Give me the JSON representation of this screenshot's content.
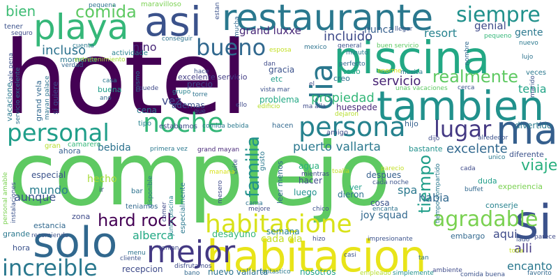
{
  "words": [
    {
      "text": "hotel",
      "color": "#440154"
    },
    {
      "text": "complejo",
      "color": "#5ec962"
    },
    {
      "text": "habitacion",
      "color": "#e8e419"
    },
    {
      "text": "restaurante",
      "color": "#2a788e"
    },
    {
      "text": "piscina",
      "color": "#22a884"
    },
    {
      "text": "tambien",
      "color": "#21918c"
    },
    {
      "text": "asi",
      "color": "#3b528b"
    },
    {
      "text": "solo",
      "color": "#31688e"
    },
    {
      "text": "playa",
      "color": "#35b779"
    },
    {
      "text": "mejor",
      "color": "#443983"
    },
    {
      "text": "persona",
      "color": "#26828e"
    },
    {
      "text": "personal",
      "color": "#1f9e89"
    },
    {
      "text": "noche",
      "color": "#35b779"
    },
    {
      "text": "habitacione",
      "color": "#d8e219"
    },
    {
      "text": "increible",
      "color": "#2a788e"
    },
    {
      "text": "hard rock",
      "color": "#440154"
    },
    {
      "text": "si",
      "color": "#3b528b"
    },
    {
      "text": "ma",
      "color": "#355f8d"
    },
    {
      "text": "siempre",
      "color": "#21918c"
    },
    {
      "text": "bueno",
      "color": "#31688e"
    },
    {
      "text": "lugar",
      "color": "#443983"
    },
    {
      "text": "dia",
      "color": "#2a788e"
    },
    {
      "text": "agradable",
      "color": "#7ad151"
    },
    {
      "text": "realmente",
      "color": "#5ec962"
    },
    {
      "text": "familia",
      "color": "#21918c"
    },
    {
      "text": "viaje",
      "color": "#2ab07f"
    },
    {
      "text": "tiempo",
      "color": "#1f9e89"
    },
    {
      "text": "comida",
      "color": "#5ec962"
    },
    {
      "text": "bien",
      "color": "#3dbc74"
    },
    {
      "text": "puerto vallarta",
      "color": "#2a788e"
    },
    {
      "text": "excelente",
      "color": "#31688e"
    },
    {
      "text": "propiedad",
      "color": "#35b779"
    },
    {
      "text": "incluso",
      "color": "#2c728e"
    },
    {
      "text": "incluido",
      "color": "#3e4a89"
    },
    {
      "text": "grand luxxe",
      "color": "#482878"
    },
    {
      "text": "resort",
      "color": "#26828e"
    },
    {
      "text": "servicio",
      "color": "#482475"
    },
    {
      "text": "tenia",
      "color": "#20a486"
    },
    {
      "text": "genial",
      "color": "#3e4a89"
    },
    {
      "text": "gente",
      "color": "#2a788e"
    },
    {
      "text": "nunca",
      "color": "#355f8d"
    },
    {
      "text": "mundo",
      "color": "#287c8e"
    },
    {
      "text": "aunque",
      "color": "#3b528b"
    },
    {
      "text": "bebida",
      "color": "#2c728e"
    },
    {
      "text": "alberca",
      "color": "#22a884"
    },
    {
      "text": "encanto",
      "color": "#2a788e"
    },
    {
      "text": "alli",
      "color": "#443983"
    },
    {
      "text": "aqui",
      "color": "#3e4a89"
    },
    {
      "text": "habia",
      "color": "#31688e"
    },
    {
      "text": "spa",
      "color": "#2a788e"
    },
    {
      "text": "vez",
      "color": "#3e4a89"
    },
    {
      "text": "nino",
      "color": "#482878"
    },
    {
      "text": "hecho",
      "color": "#a5db36"
    },
    {
      "text": "cada dia",
      "color": "#c2df23"
    },
    {
      "text": "joy squad",
      "color": "#31688e"
    },
    {
      "text": "desayuno",
      "color": "#35b779"
    },
    {
      "text": "semana",
      "color": "#26828e"
    },
    {
      "text": "nosotros",
      "color": "#1fa187"
    },
    {
      "text": "nuevo vallarta",
      "color": "#2c728e"
    },
    {
      "text": "recepcion",
      "color": "#3e4a89"
    },
    {
      "text": "excelente servicio",
      "color": "#433e85"
    },
    {
      "text": "gracia",
      "color": "#3b528b"
    },
    {
      "text": "cena",
      "color": "#2a788e"
    },
    {
      "text": "ademas",
      "color": "#3b528b"
    },
    {
      "text": "etc",
      "color": "#1f9e89"
    },
    {
      "text": "precio",
      "color": "#3e4a89"
    },
    {
      "text": "problema",
      "color": "#22a884"
    },
    {
      "text": "huespede",
      "color": "#482878"
    },
    {
      "text": "agua",
      "color": "#2ab07f"
    },
    {
      "text": "luego",
      "color": "#21918c"
    },
    {
      "text": "hacer",
      "color": "#3e4a89"
    },
    {
      "text": "dieron",
      "color": "#2c728e"
    },
    {
      "text": "despues",
      "color": "#355f8d"
    },
    {
      "text": "cosa",
      "color": "#3b528b"
    },
    {
      "text": "duda",
      "color": "#1f9e89"
    },
    {
      "text": "conserje",
      "color": "#26828e"
    },
    {
      "text": "experiencia",
      "color": "#7ad151"
    },
    {
      "text": "embargo",
      "color": "#31688e"
    },
    {
      "text": "divertido",
      "color": "#2a788e"
    },
    {
      "text": "bastante",
      "color": "#21918c"
    },
    {
      "text": "diferente",
      "color": "#3b528b"
    },
    {
      "text": "especial",
      "color": "#3b528b"
    },
    {
      "text": "ahora",
      "color": "#355f8d"
    },
    {
      "text": "estancia",
      "color": "#31688e"
    },
    {
      "text": "zona",
      "color": "#3e4a89"
    },
    {
      "text": "grande",
      "color": "#2a788e"
    },
    {
      "text": "hora",
      "color": "#3b528b"
    },
    {
      "text": "buena",
      "color": "#1f9e89"
    },
    {
      "text": "creo",
      "color": "#2c728e"
    },
    {
      "text": "todo",
      "color": "#22a884"
    },
    {
      "text": "ver",
      "color": "#1f9e89"
    },
    {
      "text": "amigo",
      "color": "#3e4a89"
    },
    {
      "text": "tipo",
      "color": "#26828e"
    },
    {
      "text": "estabamos",
      "color": "#3e4a89"
    },
    {
      "text": "comida bebida",
      "color": "#2a788e"
    },
    {
      "text": "hacen",
      "color": "#31688e"
    },
    {
      "text": "hijo",
      "color": "#355f8d"
    },
    {
      "text": "gran",
      "color": "#b5de2b"
    },
    {
      "text": "camarero",
      "color": "#35b779"
    },
    {
      "text": "momento",
      "color": "#2a788e"
    },
    {
      "text": "entretenimiento",
      "color": "#a5db36"
    },
    {
      "text": "actividade",
      "color": "#26828e"
    },
    {
      "text": "conseguir",
      "color": "#2c728e"
    },
    {
      "text": "maravilloso",
      "color": "#7ad151"
    },
    {
      "text": "pequena",
      "color": "#2c728e"
    },
    {
      "text": "tener",
      "color": "#3b528b"
    },
    {
      "text": "seguro",
      "color": "#3e4a89"
    },
    {
      "text": "cuenta",
      "color": "#2a788e"
    },
    {
      "text": "estan",
      "color": "#3b528b"
    },
    {
      "text": "mucha",
      "color": "#31688e"
    },
    {
      "text": "llegar",
      "color": "#3b528b"
    },
    {
      "text": "buen servicio",
      "color": "#5ec962"
    },
    {
      "text": "pequeno",
      "color": "#35b779"
    },
    {
      "text": "nuevo",
      "color": "#2a788e"
    },
    {
      "text": "nombre",
      "color": "#31688e"
    },
    {
      "text": "lujo",
      "color": "#2c728e"
    },
    {
      "text": "marido",
      "color": "#3b528b"
    },
    {
      "text": "veces",
      "color": "#2a788e"
    },
    {
      "text": "lado",
      "color": "#3b528b"
    },
    {
      "text": "parece",
      "color": "#3e4a89"
    },
    {
      "text": "toda",
      "color": "#c2df23"
    },
    {
      "text": "favorito",
      "color": "#31688e"
    },
    {
      "text": "comida buena",
      "color": "#3b528b"
    },
    {
      "text": "tan",
      "color": "#2c728e"
    },
    {
      "text": "ambiente",
      "color": "#3e4a89"
    },
    {
      "text": "simplemente",
      "color": "#21918c"
    },
    {
      "text": "empleado",
      "color": "#b5de2b"
    },
    {
      "text": "casi",
      "color": "#3b528b"
    },
    {
      "text": "fantastico",
      "color": "#2a788e"
    },
    {
      "text": "disfrutamos",
      "color": "#3e4a89"
    },
    {
      "text": "bano",
      "color": "#31688e"
    },
    {
      "text": "cliente",
      "color": "#3b528b"
    },
    {
      "text": "menu",
      "color": "#2c728e"
    },
    {
      "text": "tenian",
      "color": "#3e4a89"
    },
    {
      "text": "junto piscina",
      "color": "#26828e"
    },
    {
      "text": "disponible",
      "color": "#2c728e"
    },
    {
      "text": "comer",
      "color": "#3e4a89"
    },
    {
      "text": "especialmente",
      "color": "#2a788e"
    },
    {
      "text": "teniamos",
      "color": "#31688e"
    },
    {
      "text": "recomiendo",
      "color": "#3b528b"
    },
    {
      "text": "ir",
      "color": "#3e4a89"
    },
    {
      "text": "bar",
      "color": "#2c728e"
    },
    {
      "text": "instalaciones",
      "color": "#3b528b"
    },
    {
      "text": "personal amable",
      "color": "#7ad151"
    },
    {
      "text": "mesero",
      "color": "#3e4a89"
    },
    {
      "text": "leer menos",
      "color": "#31688e"
    },
    {
      "text": "suite",
      "color": "#3b528b"
    },
    {
      "text": "gusto",
      "color": "#2a788e"
    },
    {
      "text": "mientras",
      "color": "#3e4a89"
    },
    {
      "text": "toalla",
      "color": "#c2df23"
    },
    {
      "text": "parecio",
      "color": "#c2df23"
    },
    {
      "text": "cada noche",
      "color": "#3b528b"
    },
    {
      "text": "tiempo compartido",
      "color": "#2a788e"
    },
    {
      "text": "cada",
      "color": "#3e4a89"
    },
    {
      "text": "buffet",
      "color": "#31688e"
    },
    {
      "text": "unico",
      "color": "#2a788e"
    },
    {
      "text": "alrededor",
      "color": "#3b528b"
    },
    {
      "text": "dijo",
      "color": "#3e4a89"
    },
    {
      "text": "encanta",
      "color": "#2c728e"
    },
    {
      "text": "chico",
      "color": "#3b528b"
    },
    {
      "text": "hizo",
      "color": "#3e4a89"
    },
    {
      "text": "impresionante",
      "color": "#3b528b"
    },
    {
      "text": "cama",
      "color": "#2c728e"
    },
    {
      "text": "mejore",
      "color": "#3e4a89"
    },
    {
      "text": "manana",
      "color": "#d8e219"
    },
    {
      "text": "grand mayan",
      "color": "#482878"
    },
    {
      "text": "primera vez",
      "color": "#2a788e"
    },
    {
      "text": "edificio",
      "color": "#b5de2b"
    },
    {
      "text": "dejaron",
      "color": "#b5de2b"
    },
    {
      "text": "ma alla",
      "color": "#3e4a89"
    },
    {
      "text": "vista mar",
      "color": "#3b528b"
    },
    {
      "text": "ello",
      "color": "#3e4a89"
    },
    {
      "text": "torre",
      "color": "#2c728e"
    },
    {
      "text": "que",
      "color": "#3b528b"
    },
    {
      "text": "grupo",
      "color": "#26828e"
    },
    {
      "text": "mismo",
      "color": "#2c728e"
    },
    {
      "text": "puede",
      "color": "#3e4a89"
    },
    {
      "text": "casa",
      "color": "#2a788e"
    },
    {
      "text": "ano",
      "color": "#31688e"
    },
    {
      "text": "hace",
      "color": "#3b528b"
    },
    {
      "text": "dan",
      "color": "#3e4a89"
    },
    {
      "text": "esposa",
      "color": "#c2df23"
    },
    {
      "text": "mexico",
      "color": "#2c728e"
    },
    {
      "text": "general",
      "color": "#3b528b"
    },
    {
      "text": "perfecto",
      "color": "#31688e"
    },
    {
      "text": "minuto",
      "color": "#2a788e"
    },
    {
      "text": "enorme",
      "color": "#d8e219"
    },
    {
      "text": "musica",
      "color": "#2a788e"
    },
    {
      "text": "unas vacaciones",
      "color": "#5ec962"
    },
    {
      "text": "cerca",
      "color": "#3b528b"
    },
    {
      "text": "el",
      "color": "#3e4a89"
    },
    {
      "text": "verdad",
      "color": "#31688e"
    },
    {
      "text": "vale pena",
      "color": "#3b528b"
    },
    {
      "text": "vacacione",
      "color": "#2a788e"
    },
    {
      "text": "servicio excelente",
      "color": "#2c728e"
    },
    {
      "text": "grand vela",
      "color": "#31688e"
    },
    {
      "text": "mayan palace",
      "color": "#2c728e"
    },
    {
      "text": "si quiere",
      "color": "#3e4a89"
    }
  ]
}
